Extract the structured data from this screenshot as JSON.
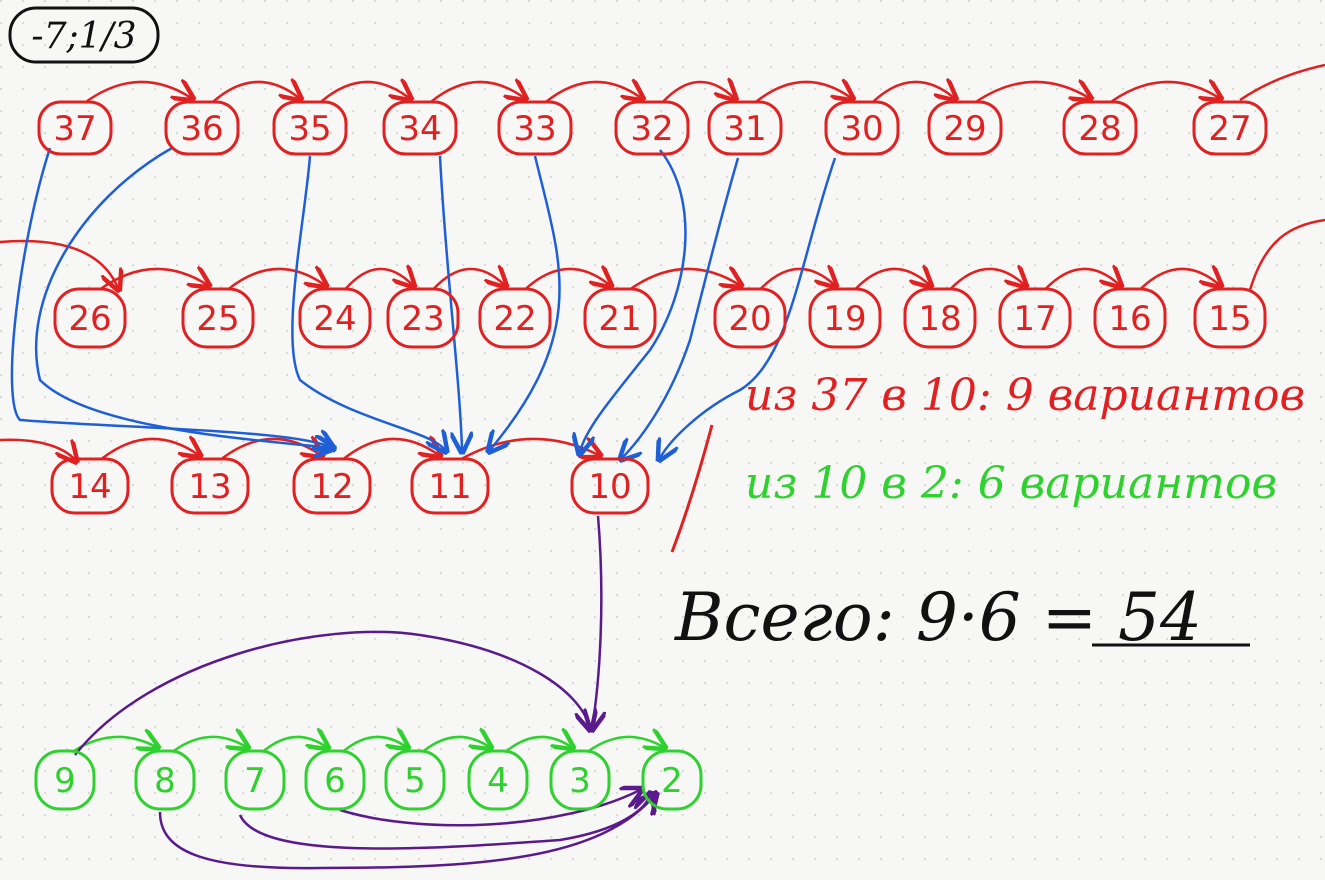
{
  "badge": "-7;1/3",
  "row1": [
    "37",
    "36",
    "35",
    "34",
    "33",
    "32",
    "31",
    "30",
    "29",
    "28",
    "27"
  ],
  "row2": [
    "26",
    "25",
    "24",
    "23",
    "22",
    "21",
    "20",
    "19",
    "18",
    "17",
    "16",
    "15"
  ],
  "row3": [
    "14",
    "13",
    "12",
    "11",
    "10"
  ],
  "row4": [
    "9",
    "8",
    "7",
    "6",
    "5",
    "4",
    "3",
    "2"
  ],
  "notes": {
    "red": "из 37 в 10: 9 вариантов",
    "green": "из 10 в 2: 6 вариантов",
    "total": "Всего: 9·6 = 54"
  },
  "colors": {
    "red": "#e02121",
    "blue": "#1f5fd6",
    "green": "#2ed12e",
    "purple": "#5a1a8c",
    "black": "#111111"
  }
}
